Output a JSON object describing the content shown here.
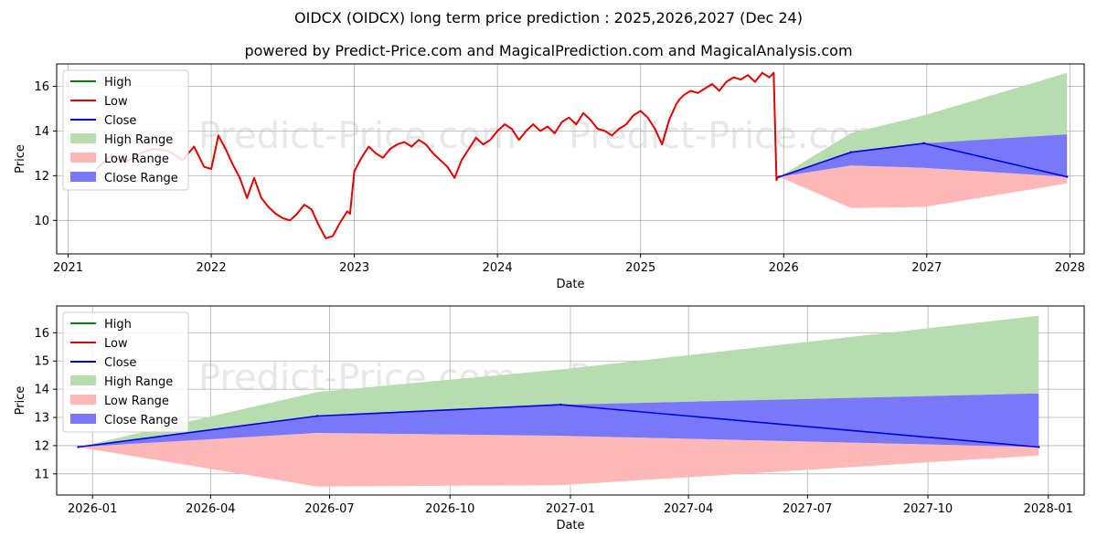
{
  "title": "OIDCX (OIDCX) long term price prediction : 2025,2026,2027 (Dec 24)",
  "subtitle": "powered by Predict-Price.com and MagicalPrediction.com and MagicalAnalysis.com",
  "watermark": "Predict-Price.com",
  "colors": {
    "high": "#008000",
    "low": "#e00000",
    "close": "#0000dd",
    "high_range": "#b6dcb0",
    "low_range": "#ffb8b8",
    "close_range": "#7878f8",
    "grid": "#b0b0b0",
    "watermark": "#e8e8e8"
  },
  "chart_data": [
    {
      "type": "line",
      "name": "full-history",
      "xlabel": "Date",
      "ylabel": "Price",
      "xlim": [
        2020.92,
        2028.1
      ],
      "ylim": [
        8.5,
        17.0
      ],
      "grid": true,
      "legend_position": "top-left",
      "legend": [
        "High",
        "Low",
        "Close",
        "High Range",
        "Low Range",
        "Close Range"
      ],
      "x_ticks": [
        2021,
        2022,
        2023,
        2024,
        2025,
        2026,
        2027,
        2028
      ],
      "x_tick_labels": [
        "2021",
        "2022",
        "2023",
        "2024",
        "2025",
        "2026",
        "2027",
        "2028"
      ],
      "y_ticks": [
        10,
        12,
        14,
        16
      ],
      "y_tick_labels": [
        "10",
        "12",
        "14",
        "16"
      ],
      "history": {
        "x": [
          2021.2,
          2021.3,
          2021.4,
          2021.5,
          2021.6,
          2021.7,
          2021.8,
          2021.88,
          2021.95,
          2022.0,
          2022.05,
          2022.1,
          2022.15,
          2022.2,
          2022.25,
          2022.3,
          2022.35,
          2022.4,
          2022.45,
          2022.5,
          2022.55,
          2022.6,
          2022.65,
          2022.7,
          2022.75,
          2022.8,
          2022.85,
          2022.9,
          2022.95,
          2022.97,
          2023.0,
          2023.05,
          2023.1,
          2023.15,
          2023.2,
          2023.25,
          2023.3,
          2023.35,
          2023.4,
          2023.45,
          2023.5,
          2023.55,
          2023.6,
          2023.65,
          2023.7,
          2023.75,
          2023.8,
          2023.85,
          2023.9,
          2023.95,
          2024.0,
          2024.05,
          2024.1,
          2024.15,
          2024.2,
          2024.25,
          2024.3,
          2024.35,
          2024.4,
          2024.45,
          2024.5,
          2024.55,
          2024.6,
          2024.65,
          2024.7,
          2024.75,
          2024.8,
          2024.85,
          2024.9,
          2024.95,
          2025.0,
          2025.05,
          2025.1,
          2025.15,
          2025.2,
          2025.25,
          2025.27,
          2025.3,
          2025.35,
          2025.4,
          2025.45,
          2025.5,
          2025.55,
          2025.6,
          2025.65,
          2025.7,
          2025.75,
          2025.8,
          2025.85,
          2025.9,
          2025.93,
          2025.95,
          2025.96
        ],
        "values": [
          12.3,
          12.9,
          12.6,
          13.0,
          13.2,
          13.1,
          12.7,
          13.3,
          12.4,
          12.3,
          13.8,
          13.2,
          12.5,
          11.9,
          11.0,
          11.9,
          11.0,
          10.6,
          10.3,
          10.1,
          10.0,
          10.3,
          10.7,
          10.5,
          9.8,
          9.2,
          9.3,
          9.9,
          10.4,
          10.3,
          12.2,
          12.8,
          13.3,
          13.0,
          12.8,
          13.2,
          13.4,
          13.5,
          13.3,
          13.6,
          13.4,
          13.0,
          12.7,
          12.4,
          11.9,
          12.7,
          13.2,
          13.7,
          13.4,
          13.6,
          14.0,
          14.3,
          14.1,
          13.6,
          14.0,
          14.3,
          14.0,
          14.2,
          13.9,
          14.4,
          14.6,
          14.3,
          14.8,
          14.5,
          14.1,
          14.0,
          13.8,
          14.1,
          14.3,
          14.7,
          14.9,
          14.6,
          14.1,
          13.4,
          14.5,
          15.2,
          15.4,
          15.6,
          15.8,
          15.7,
          15.9,
          16.1,
          15.8,
          16.2,
          16.4,
          16.3,
          16.5,
          16.2,
          16.6,
          16.4,
          16.6,
          11.8,
          11.95
        ]
      },
      "forecast": {
        "x": [
          2025.97,
          2026.47,
          2026.98,
          2027.98
        ],
        "close": [
          11.95,
          13.05,
          13.45,
          11.95
        ],
        "high_range": {
          "upper": [
            11.95,
            13.9,
            14.7,
            16.6
          ],
          "lower": [
            11.95,
            13.05,
            13.45,
            13.85
          ]
        },
        "close_range": {
          "upper": [
            11.95,
            13.05,
            13.45,
            13.85
          ],
          "lower": [
            11.95,
            12.45,
            12.35,
            11.95
          ]
        },
        "low_range": {
          "upper": [
            11.95,
            12.45,
            12.35,
            11.95
          ],
          "lower": [
            11.95,
            10.55,
            10.6,
            11.65
          ]
        }
      }
    },
    {
      "type": "line",
      "name": "forecast-zoom",
      "xlabel": "Date",
      "ylabel": "Price",
      "xlim": [
        2025.925,
        2028.075
      ],
      "ylim": [
        10.25,
        16.95
      ],
      "grid": true,
      "legend_position": "top-left",
      "legend": [
        "High",
        "Low",
        "Close",
        "High Range",
        "Low Range",
        "Close Range"
      ],
      "x_ticks": [
        2026.0,
        2026.247,
        2026.496,
        2026.748,
        2027.0,
        2027.247,
        2027.496,
        2027.748,
        2028.0
      ],
      "x_tick_labels": [
        "2026-01",
        "2026-04",
        "2026-07",
        "2026-10",
        "2027-01",
        "2027-04",
        "2027-07",
        "2027-10",
        "2028-01"
      ],
      "y_ticks": [
        11,
        12,
        13,
        14,
        15,
        16
      ],
      "y_tick_labels": [
        "11",
        "12",
        "13",
        "14",
        "15",
        "16"
      ],
      "forecast": {
        "x": [
          2025.97,
          2026.47,
          2026.98,
          2027.98
        ],
        "close": [
          11.95,
          13.05,
          13.45,
          11.95
        ],
        "high_range": {
          "upper": [
            11.95,
            13.9,
            14.7,
            16.6
          ],
          "lower": [
            11.95,
            13.05,
            13.45,
            13.85
          ]
        },
        "close_range": {
          "upper": [
            11.95,
            13.05,
            13.45,
            13.85
          ],
          "lower": [
            11.95,
            12.45,
            12.35,
            11.95
          ]
        },
        "low_range": {
          "upper": [
            11.95,
            12.45,
            12.35,
            11.95
          ],
          "lower": [
            11.95,
            10.55,
            10.6,
            11.65
          ]
        }
      }
    }
  ]
}
